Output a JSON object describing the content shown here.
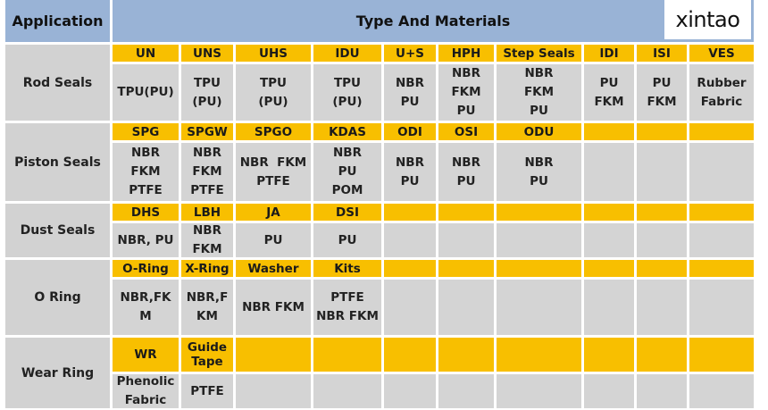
{
  "header": {
    "application": "Application",
    "type_and_materials": "Type  And Materials",
    "brand": "xintao"
  },
  "sections": [
    {
      "application": "Rod Seals",
      "types": [
        "UN",
        "UNS",
        "UHS",
        "IDU",
        "U+S",
        "HPH",
        "Step Seals",
        "IDI",
        "ISI",
        "VES"
      ],
      "materials": [
        "TPU(PU)",
        "TPU\n(PU)",
        "TPU\n(PU)",
        "TPU\n(PU)",
        "NBR\nPU",
        "NBR\nFKM\nPU",
        "NBR\nFKM\nPU",
        "PU\nFKM",
        "PU\nFKM",
        "Rubber\nFabric"
      ]
    },
    {
      "application": "Piston Seals",
      "types": [
        "SPG",
        "SPGW",
        "SPGO",
        "KDAS",
        "ODI",
        "OSI",
        "ODU",
        "",
        "",
        ""
      ],
      "materials": [
        "NBR\nFKM\nPTFE",
        "NBR\nFKM\nPTFE",
        "NBR  FKM\nPTFE",
        "NBR\nPU\nPOM",
        "NBR\nPU",
        "NBR\nPU",
        "NBR\nPU",
        "",
        "",
        ""
      ]
    },
    {
      "application": "Dust Seals",
      "types": [
        "DHS",
        "LBH",
        "JA",
        "DSI",
        "",
        "",
        "",
        "",
        "",
        ""
      ],
      "materials": [
        "NBR, PU",
        "NBR\nFKM",
        "PU",
        "PU",
        "",
        "",
        "",
        "",
        "",
        ""
      ]
    },
    {
      "application": "O Ring",
      "types": [
        "O-Ring",
        "X-Ring",
        "Washer",
        "Kits",
        "",
        "",
        "",
        "",
        "",
        ""
      ],
      "materials": [
        "NBR,FK\nM",
        "NBR,F\nKM",
        "NBR    FKM",
        "PTFE\nNBR FKM",
        "",
        "",
        "",
        "",
        "",
        ""
      ]
    },
    {
      "application": "Wear Ring",
      "types": [
        "WR",
        "Guide\nTape",
        "",
        "",
        "",
        "",
        "",
        "",
        "",
        ""
      ],
      "materials": [
        "Phenolic\nFabric",
        "PTFE",
        "",
        "",
        "",
        "",
        "",
        "",
        "",
        ""
      ]
    }
  ]
}
